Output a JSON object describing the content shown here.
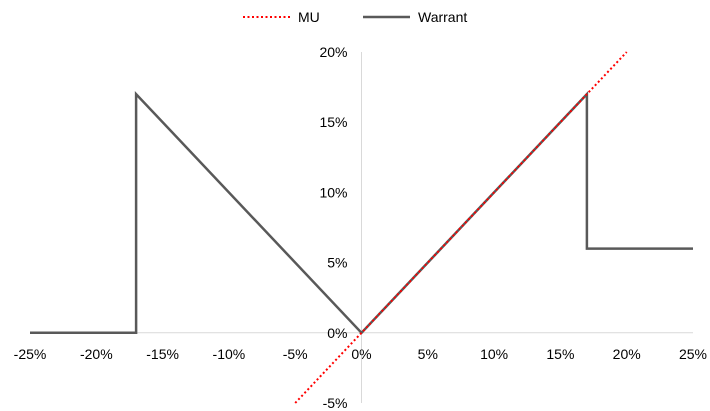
{
  "chart_data": {
    "type": "line",
    "title": "",
    "xlabel": "",
    "ylabel": "",
    "xlim": [
      -25,
      25
    ],
    "ylim": [
      -5,
      20
    ],
    "x_ticks": [
      -25,
      -20,
      -15,
      -10,
      -5,
      0,
      5,
      10,
      15,
      20,
      25
    ],
    "x_tick_labels": [
      "-25%",
      "-20%",
      "-15%",
      "-10%",
      "-5%",
      "0%",
      "5%",
      "10%",
      "15%",
      "20%",
      "25%"
    ],
    "y_ticks": [
      -5,
      0,
      5,
      10,
      15,
      20
    ],
    "y_tick_labels": [
      "-5%",
      "0%",
      "5%",
      "10%",
      "15%",
      "20%"
    ],
    "grid": false,
    "legend_position": "top-center",
    "series": [
      {
        "name": "MU",
        "style": "dotted",
        "color": "#ff0000",
        "points": [
          [
            -5,
            -5
          ],
          [
            0,
            0
          ],
          [
            20,
            20
          ]
        ]
      },
      {
        "name": "Warrant",
        "style": "solid",
        "color": "#595959",
        "points": [
          [
            -25,
            0
          ],
          [
            -17,
            0
          ],
          [
            -17,
            17
          ],
          [
            0,
            0
          ],
          [
            17,
            17
          ],
          [
            17,
            6
          ],
          [
            25,
            6
          ]
        ]
      }
    ]
  }
}
